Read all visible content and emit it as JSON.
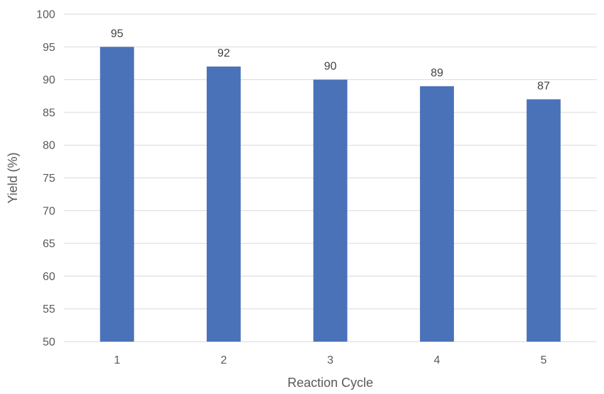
{
  "chart_data": {
    "type": "bar",
    "title": "",
    "xlabel": "Reaction Cycle",
    "ylabel": "Yield (%)",
    "categories": [
      "1",
      "2",
      "3",
      "4",
      "5"
    ],
    "values": [
      95,
      92,
      90,
      89,
      87
    ],
    "data_labels": [
      "95",
      "92",
      "90",
      "89",
      "87"
    ],
    "ylim": [
      50,
      100
    ],
    "yticks": [
      50,
      55,
      60,
      65,
      70,
      75,
      80,
      85,
      90,
      95,
      100
    ],
    "ytick_labels": [
      "50",
      "55",
      "60",
      "65",
      "70",
      "75",
      "80",
      "85",
      "90",
      "95",
      "100"
    ],
    "grid": true,
    "legend": "none",
    "bar_color": "#4a72b8",
    "gridline_color": "#d9d9d9"
  }
}
